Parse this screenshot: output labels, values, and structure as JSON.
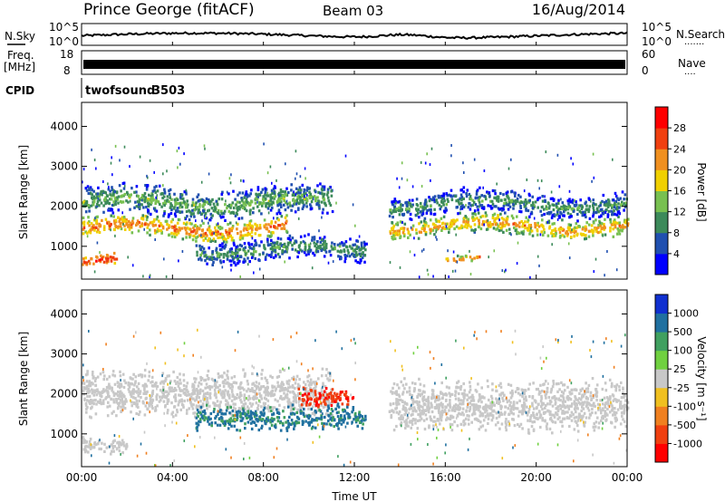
{
  "header": {
    "station": "Prince George (fitACF)",
    "beam": "Beam 03",
    "date": "16/Aug/2014"
  },
  "noise_panel": {
    "left_label": "N.Sky",
    "right_label": "N.Search",
    "right_legend": "·······",
    "left_ticks": [
      "10^5",
      "10^0"
    ],
    "right_ticks": [
      "10^5",
      "10^0"
    ]
  },
  "freq_panel": {
    "left_label_line1": "Freq.",
    "left_label_line2": "[MHz]",
    "right_label": "Nave",
    "right_legend": "····",
    "left_ticks": [
      "18",
      "8"
    ],
    "right_ticks": [
      "60",
      "0"
    ]
  },
  "cpid_panel": {
    "label": "CPID",
    "program": "twofsound",
    "cpid": "3503"
  },
  "x_axis": {
    "label": "Time UT",
    "ticks": [
      "00:00",
      "04:00",
      "08:00",
      "12:00",
      "16:00",
      "20:00",
      "00:00"
    ]
  },
  "power_panel": {
    "ylabel": "Slant Range [km]",
    "yticks": [
      "1000",
      "2000",
      "3000",
      "4000"
    ],
    "colorbar_label": "Power [dB]",
    "colorbar_ticks": [
      "4",
      "8",
      "12",
      "16",
      "20",
      "24",
      "28"
    ],
    "colors": [
      "#0000ff",
      "#2050b0",
      "#3c8a5a",
      "#78c050",
      "#f0d000",
      "#f09020",
      "#f04010",
      "#ff0000"
    ]
  },
  "velocity_panel": {
    "ylabel": "Slant Range [km]",
    "yticks": [
      "1000",
      "2000",
      "3000",
      "4000"
    ],
    "colorbar_label": "Velocity [m s⁻¹]",
    "colorbar_ticks": [
      "1000",
      "500",
      "100",
      "25",
      "-25",
      "-100",
      "-500",
      "-1000"
    ],
    "colors": [
      "#1030d0",
      "#2070a0",
      "#40a060",
      "#70d040",
      "#c8c8c8",
      "#f0c020",
      "#f08020",
      "#f04010",
      "#ff0000"
    ]
  },
  "chart_data": [
    {
      "type": "line",
      "title": "N.Sky / N.Search",
      "x_range_hours": [
        0,
        24
      ],
      "y_scale": "log",
      "ylim": [
        1,
        100000
      ]
    },
    {
      "type": "line",
      "title": "Freq. / Nave",
      "x_range_hours": [
        0,
        24
      ],
      "ylim_freq_mhz": [
        8,
        18
      ],
      "ylim_nave": [
        0,
        60
      ]
    },
    {
      "type": "heatmap",
      "title": "Power [dB]",
      "xlabel": "Time UT",
      "ylabel": "Slant Range [km]",
      "x_range_hours": [
        0,
        24
      ],
      "ylim_km": [
        180,
        4600
      ],
      "clim_db": [
        0,
        32
      ],
      "bands": [
        {
          "start_h": 0.0,
          "end_h": 11.0,
          "center_km": 2100,
          "width_km": 600,
          "power_db": 14
        },
        {
          "start_h": 0.0,
          "end_h": 9.0,
          "center_km": 1450,
          "width_km": 400,
          "power_db": 24
        },
        {
          "start_h": 0.0,
          "end_h": 1.5,
          "center_km": 600,
          "width_km": 250,
          "power_db": 28
        },
        {
          "start_h": 5.0,
          "end_h": 12.5,
          "center_km": 900,
          "width_km": 500,
          "power_db": 12
        },
        {
          "start_h": 13.5,
          "end_h": 24.0,
          "center_km": 1500,
          "width_km": 400,
          "power_db": 22
        },
        {
          "start_h": 13.5,
          "end_h": 24.0,
          "center_km": 2050,
          "width_km": 500,
          "power_db": 12
        },
        {
          "start_h": 16.0,
          "end_h": 17.5,
          "center_km": 600,
          "width_km": 150,
          "power_db": 24
        }
      ]
    },
    {
      "type": "heatmap",
      "title": "Velocity [m s⁻¹]",
      "xlabel": "Time UT",
      "ylabel": "Slant Range [km]",
      "x_range_hours": [
        0,
        24
      ],
      "ylim_km": [
        180,
        4600
      ],
      "bands": [
        {
          "start_h": 0.0,
          "end_h": 11.0,
          "center_km": 2000,
          "width_km": 900,
          "velocity": 0
        },
        {
          "start_h": 13.5,
          "end_h": 24.0,
          "center_km": 1700,
          "width_km": 1000,
          "velocity": 0
        },
        {
          "start_h": 9.5,
          "end_h": 12.0,
          "center_km": 1900,
          "width_km": 400,
          "velocity": -800
        },
        {
          "start_h": 5.0,
          "end_h": 12.5,
          "center_km": 1400,
          "width_km": 500,
          "velocity": 120
        },
        {
          "start_h": 0.0,
          "end_h": 2.0,
          "center_km": 700,
          "width_km": 350,
          "velocity": 0
        }
      ]
    }
  ]
}
